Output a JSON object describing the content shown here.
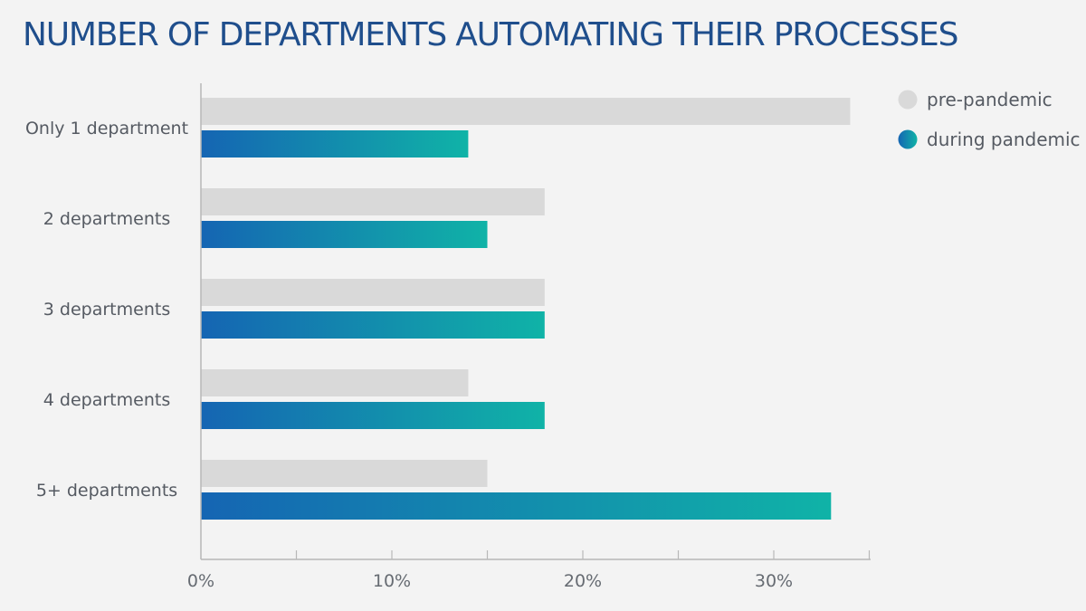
{
  "chart_data": {
    "type": "bar",
    "orientation": "horizontal",
    "title": "NUMBER OF DEPARTMENTS AUTOMATING THEIR PROCESSES",
    "xlabel": "",
    "ylabel": "",
    "categories": [
      "Only 1 department",
      "2 departments",
      "3 departments",
      "4 departments",
      "5+ departments"
    ],
    "series": [
      {
        "name": "pre-pandemic",
        "values": [
          34,
          18,
          18,
          14,
          15
        ],
        "color": "#d9d9d9"
      },
      {
        "name": "during pandemic",
        "values": [
          14,
          15,
          18,
          18,
          33
        ],
        "color_start": "#1565b3",
        "color_end": "#10b3a7"
      }
    ],
    "xlim": [
      0,
      35
    ],
    "xticks": [
      {
        "value": 0,
        "label": "0%"
      },
      {
        "value": 10,
        "label": "10%"
      },
      {
        "value": 20,
        "label": "20%"
      },
      {
        "value": 30,
        "label": "30%"
      }
    ],
    "minor_ticks": [
      5,
      15,
      25,
      35
    ],
    "grid": false,
    "legend_position": "top-right",
    "colors": {
      "axis": "#b8b8b8",
      "title": "#1f4e8c",
      "text": "#555a62"
    }
  }
}
